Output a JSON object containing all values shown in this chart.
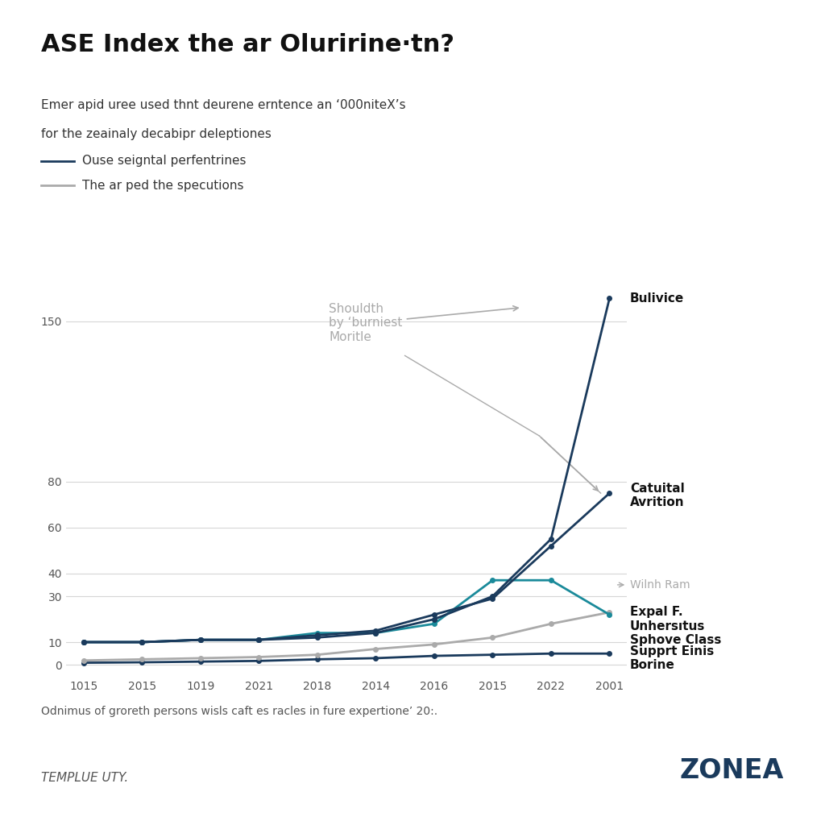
{
  "title": "ASE Index the ar Oluririne·tn?",
  "subtitle_line1": "Emer apid uree used thnt deurene erntence an ‘000niteX’s",
  "subtitle_line2": "for the zeainaly decabipr deleptiones",
  "legend_line1": "Ouse seigntal perfentrines",
  "legend_line2": "The ar ped the specutions",
  "footnote": "Odnimus of groreth persons wisls caft es racles in fure expertione’ 20:.",
  "source_left": "TEMPLUE UTY.",
  "source_right": "ZONEA",
  "x_labels": [
    "1015",
    "2015",
    "1019",
    "2021",
    "2018",
    "2014",
    "2016",
    "2015",
    "2022",
    "2001"
  ],
  "yticks": [
    0,
    10,
    30,
    40,
    60,
    80,
    150
  ],
  "annotation_gray": "Shouldth\nby ‘burniest\nMoritle",
  "annotation_dark1": "Bulivice",
  "annotation_dark2": "Catuital\nAvrition",
  "annotation_teal": "Expal F.\nUnhersıtus",
  "annotation_gray2": "Wilnh Ram",
  "annotation_gray3": "Sphove Class",
  "annotation_dark3": "Supprt Einis\nBorine",
  "series": {
    "line1_dark_top": {
      "color": "#1a3a5c",
      "values": [
        10,
        10,
        11,
        11,
        12,
        14,
        20,
        30,
        55,
        160
      ]
    },
    "line2_dark_second": {
      "color": "#1a3a5c",
      "values": [
        10,
        10,
        11,
        11,
        13,
        15,
        22,
        29,
        52,
        75
      ]
    },
    "line3_teal": {
      "color": "#1a8a9a",
      "values": [
        10,
        10,
        11,
        11,
        14,
        14,
        18,
        37,
        37,
        22
      ]
    },
    "line4_gray_upper": {
      "color": "#aaaaaa",
      "values": [
        2,
        2.5,
        3,
        3.5,
        4.5,
        7,
        9,
        12,
        18,
        23
      ]
    },
    "line5_dark_flat": {
      "color": "#1a3a5c",
      "values": [
        1,
        1.2,
        1.5,
        1.8,
        2.5,
        3,
        4,
        4.5,
        5,
        5
      ]
    }
  },
  "bg_color": "#ffffff",
  "grid_color": "#cccccc",
  "title_color": "#111111",
  "axis_color": "#555555"
}
